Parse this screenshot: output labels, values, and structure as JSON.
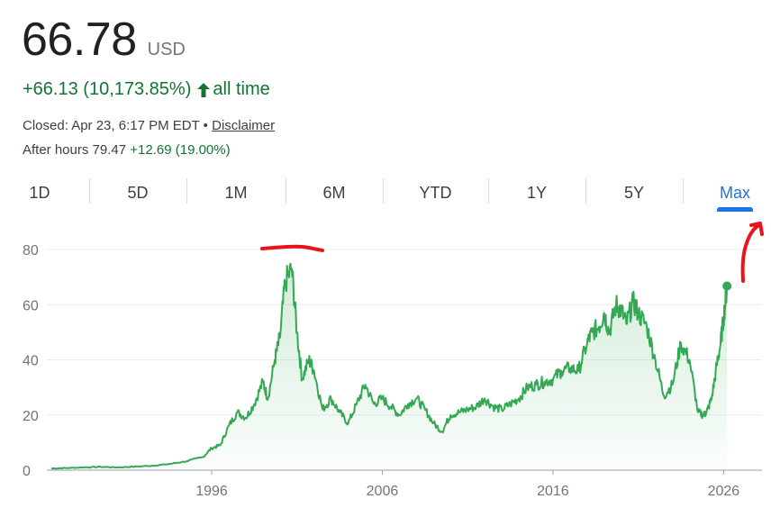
{
  "quote": {
    "price": "66.78",
    "currency": "USD",
    "change": "+66.13 (10,173.85%)",
    "period": "all time",
    "closed_label": "Closed: Apr 23, 6:17 PM EDT",
    "separator": "•",
    "disclaimer": "Disclaimer",
    "after_hours_label": "After hours",
    "after_hours_price": "79.47",
    "after_hours_change": "+12.69 (19.00%)"
  },
  "tabs": [
    {
      "label": "1D"
    },
    {
      "label": "5D"
    },
    {
      "label": "1M"
    },
    {
      "label": "6M"
    },
    {
      "label": "YTD"
    },
    {
      "label": "1Y"
    },
    {
      "label": "5Y"
    },
    {
      "label": "Max"
    }
  ],
  "active_tab": "Max",
  "colors": {
    "line": "#34a853",
    "positive": "#137333",
    "accent": "#1a73e8",
    "annotation": "#e8141b"
  },
  "chart_data": {
    "type": "area",
    "xlabel": "",
    "ylabel": "",
    "ylim": [
      0,
      80
    ],
    "yticks": [
      "0",
      "20",
      "40",
      "60",
      "80"
    ],
    "xticks": [
      {
        "label": "1996",
        "x": 1996
      },
      {
        "label": "2006",
        "x": 2006
      },
      {
        "label": "2016",
        "x": 2016
      },
      {
        "label": "2026",
        "x": 2026
      }
    ],
    "xlim": [
      1986.5,
      2027.3
    ],
    "grid": true,
    "series": [
      {
        "x": [
          1986.6,
          1987.5,
          1988.5,
          1989.5,
          1990.5,
          1991.5,
          1992.5,
          1993.5,
          1994.5,
          1995.5,
          1996.0,
          1996.5,
          1997.0,
          1997.5,
          1998.0,
          1998.5,
          1999.0,
          1999.3,
          1999.7,
          2000.0,
          2000.3,
          2000.7,
          2001.0,
          2001.3,
          2001.7,
          2002.0,
          2002.5,
          2003.0,
          2003.5,
          2004.0,
          2004.5,
          2005.0,
          2005.5,
          2006.0,
          2006.5,
          2007.0,
          2007.5,
          2008.0,
          2008.5,
          2009.0,
          2009.5,
          2010.0,
          2010.5,
          2011.0,
          2011.5,
          2012.0,
          2012.5,
          2013.0,
          2013.5,
          2014.0,
          2014.5,
          2015.0,
          2015.5,
          2016.0,
          2016.5,
          2017.0,
          2017.5,
          2018.0,
          2018.3,
          2018.7,
          2019.0,
          2019.3,
          2019.7,
          2020.0,
          2020.3,
          2020.7,
          2021.0,
          2021.5,
          2022.0,
          2022.5,
          2023.0,
          2023.5,
          2024.0,
          2024.5,
          2024.8,
          2025.0,
          2025.3,
          2025.6,
          2025.8,
          2026.0,
          2026.2
        ],
        "values": [
          0.6,
          0.8,
          1.0,
          1.2,
          1.0,
          1.3,
          1.6,
          2.2,
          3.2,
          4.8,
          8.0,
          9.0,
          16.0,
          21.0,
          19.0,
          24.0,
          32.0,
          26.0,
          40.0,
          48.0,
          68.0,
          73.0,
          50.0,
          33.0,
          40.0,
          36.0,
          22.0,
          26.0,
          21.0,
          17.0,
          24.0,
          31.0,
          24.0,
          26.0,
          23.0,
          20.0,
          24.0,
          26.0,
          22.0,
          17.0,
          14.0,
          20.0,
          21.0,
          22.0,
          23.0,
          26.0,
          23.0,
          22.0,
          24.0,
          26.0,
          30.0,
          31.0,
          32.0,
          33.0,
          36.0,
          37.0,
          36.0,
          46.0,
          50.0,
          52.0,
          57.0,
          50.0,
          60.0,
          58.0,
          53.0,
          61.0,
          57.0,
          52.0,
          40.0,
          27.0,
          31.0,
          46.0,
          40.0,
          21.0,
          20.0,
          21.0,
          26.0,
          38.0,
          45.0,
          55.0,
          66.78
        ]
      }
    ]
  }
}
